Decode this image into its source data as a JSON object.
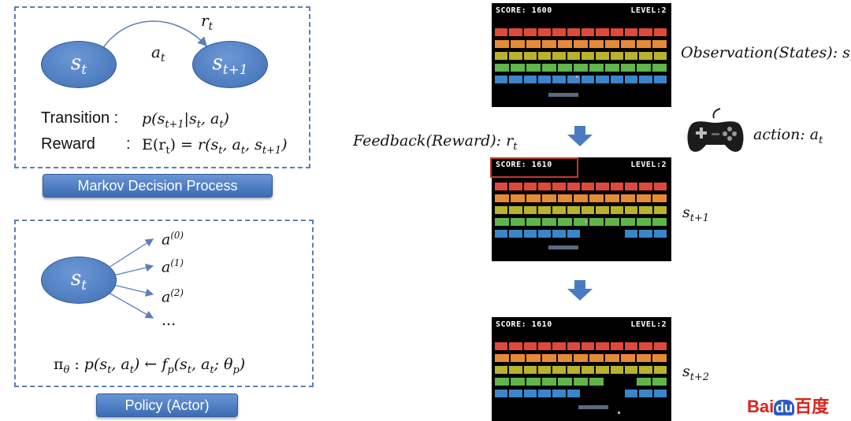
{
  "mdp": {
    "state": "s",
    "state_sub": "t",
    "next_state": "s",
    "next_state_sub": "t+1",
    "reward_sym": "r",
    "reward_sub": "t",
    "action_sym": "a",
    "action_sub": "t",
    "transition_label": "Transition :",
    "transition_formula": "p(s_{t+1}|s_t, a_t)",
    "reward_label": "Reward",
    "reward_colon": ":",
    "reward_formula": "E(r_t) = r(s_t, a_t, s_{t+1})",
    "caption": "Markov Decision Process"
  },
  "policy": {
    "state": "s",
    "state_sub": "t",
    "actions": [
      "a^{(0)}",
      "a^{(1)}",
      "a^{(2)}",
      "..."
    ],
    "formula": "π_θ : p(s_t, a_t) ← f_p(s_t, a_t; θ_p)",
    "caption": "Policy (Actor)"
  },
  "game": {
    "frames": [
      {
        "score_text": "SCORE: 1600",
        "level_text": "LEVEL:2",
        "label": "Observation(States): s_t"
      },
      {
        "score_text": "SCORE: 1610",
        "level_text": "LEVEL:2",
        "label": "s_{t+1}"
      },
      {
        "score_text": "SCORE: 1610",
        "level_text": "LEVEL:2",
        "label": "s_{t+2}"
      }
    ],
    "feedback_label": "Feedback(Reward): r_t",
    "action_label": "action: a_t"
  },
  "brick_colors": [
    "#e0493a",
    "#e78a36",
    "#b9b32c",
    "#5fb44a",
    "#3a86c8"
  ],
  "accent": "#5b7fb5",
  "highlight": "#c0392b",
  "logo": {
    "text": "Baidu百度"
  }
}
